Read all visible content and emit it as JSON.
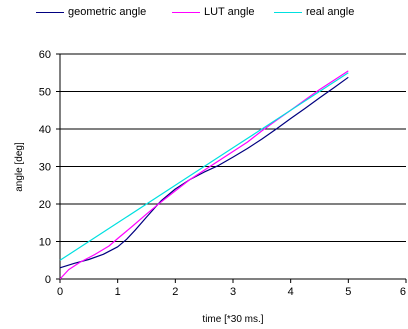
{
  "chart_data": {
    "type": "line",
    "title": "",
    "xlabel": "time [*30 ms.]",
    "ylabel": "angle [deg]",
    "xlim": [
      0,
      6
    ],
    "ylim": [
      0,
      60
    ],
    "x_ticks": [
      "0",
      "1",
      "2",
      "3",
      "4",
      "5",
      "6"
    ],
    "y_ticks": [
      "0",
      "10",
      "20",
      "30",
      "40",
      "50",
      "60"
    ],
    "grid": "horizontal",
    "legend_position": "top",
    "series": [
      {
        "name": "geometric angle",
        "color": "#000080",
        "x": [
          0,
          0.25,
          0.5,
          0.75,
          1.0,
          1.15,
          1.3,
          1.5,
          1.75,
          2.0,
          2.25,
          2.5,
          2.75,
          3.0,
          3.25,
          3.5,
          3.75,
          4.0,
          4.25,
          4.5,
          4.75,
          5.0
        ],
        "y": [
          3,
          4.2,
          5.2,
          6.6,
          8.6,
          10.5,
          13,
          16.5,
          20.8,
          24,
          26.5,
          28.5,
          30.3,
          32.5,
          34.8,
          37.3,
          40,
          42.8,
          45.5,
          48.3,
          51,
          53.8
        ]
      },
      {
        "name": "LUT angle",
        "color": "#ff00ff",
        "x": [
          0,
          0.15,
          0.35,
          0.6,
          0.85,
          1.0,
          1.25,
          1.5,
          1.75,
          2.0,
          2.25,
          2.5,
          2.75,
          3.0,
          3.25,
          3.5,
          3.75,
          4.0,
          4.25,
          4.5,
          4.75,
          5.0
        ],
        "y": [
          0,
          2.5,
          4.5,
          6.5,
          8.8,
          10.8,
          14,
          17.3,
          20.5,
          23.5,
          26.5,
          29,
          31.5,
          34,
          36.5,
          39.5,
          42.3,
          45,
          47.8,
          50.5,
          53,
          55.5
        ]
      },
      {
        "name": "real angle",
        "color": "#00e0e0",
        "x": [
          0,
          1,
          2,
          3,
          4,
          5
        ],
        "y": [
          5,
          15,
          25,
          35,
          45,
          55
        ]
      }
    ]
  }
}
